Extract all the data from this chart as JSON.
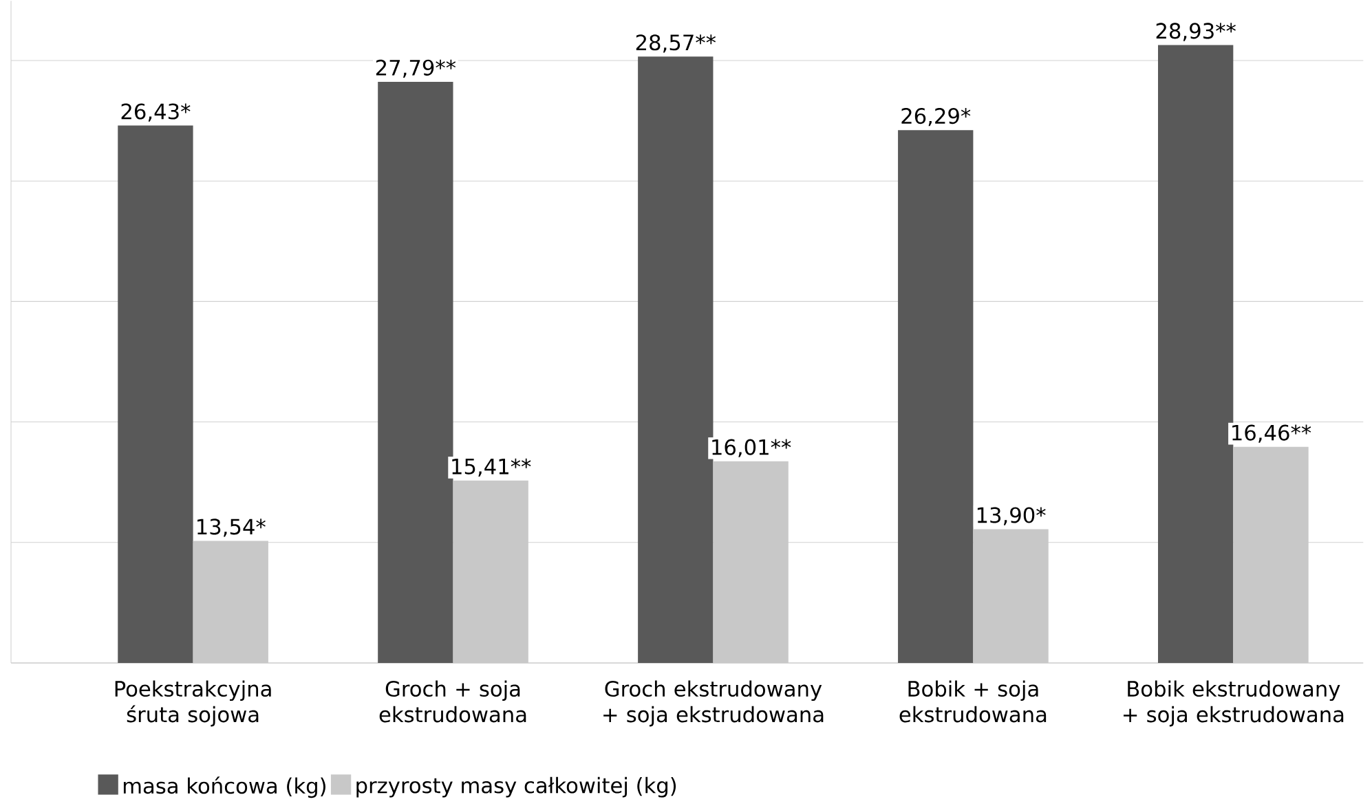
{
  "chart_data": {
    "type": "bar",
    "categories": [
      "Poekstrakcyjna śruta sojowa",
      "Groch + soja ekstrudowana",
      "Groch ekstrudowany + soja ekstrudowana",
      "Bobik + soja ekstrudowana",
      "Bobik ekstrudowany + soja ekstrudowana"
    ],
    "series": [
      {
        "name": "masa końcowa (kg)",
        "color": "#595959",
        "values": [
          26.43,
          27.79,
          28.57,
          26.29,
          28.93
        ],
        "value_labels": [
          "26,43*",
          "27,79**",
          "28,57**",
          "26,29*",
          "28,93**"
        ]
      },
      {
        "name": "przyrosty masy całkowitej (kg)",
        "color": "#c8c8c8",
        "values": [
          13.54,
          15.41,
          16.01,
          13.9,
          16.46
        ],
        "value_labels": [
          "13,54*",
          "15,41**",
          "16,01**",
          "13,90*",
          "16,46**"
        ]
      }
    ],
    "ylim": [
      9.75,
      30.3
    ],
    "yticks": [
      {
        "value": 13.49,
        "label": null
      },
      {
        "value": 17.23,
        "label": null
      },
      {
        "value": 20.97,
        "label": null
      },
      {
        "value": 24.71,
        "label": null
      },
      {
        "value": 28.45,
        "label": null
      }
    ],
    "tick_labels": "x",
    "grid": "y",
    "legend": "bottom"
  }
}
